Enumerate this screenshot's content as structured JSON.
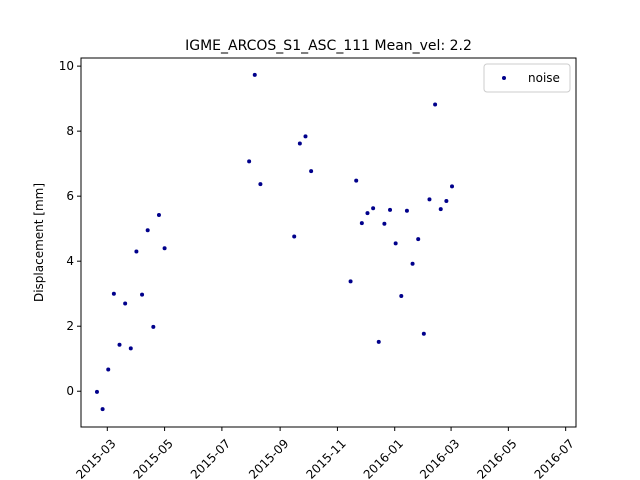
{
  "chart_data": {
    "type": "scatter",
    "title": "IGME_ARCOS_S1_ASC_111    Mean_vel: 2.2",
    "xlabel": "",
    "ylabel": "Displacement [mm]",
    "x_type": "date",
    "xlim": [
      "2015-02-01",
      "2016-07-12"
    ],
    "ylim": [
      -1.1,
      10.25
    ],
    "x_ticks": [
      "2015-03",
      "2015-05",
      "2015-07",
      "2015-09",
      "2015-11",
      "2016-01",
      "2016-03",
      "2016-05",
      "2016-07"
    ],
    "x_tick_dates": [
      "2015-03-01",
      "2015-05-01",
      "2015-07-01",
      "2015-09-01",
      "2015-11-01",
      "2016-01-01",
      "2016-03-01",
      "2016-05-01",
      "2016-07-01"
    ],
    "y_ticks": [
      0,
      2,
      4,
      6,
      8,
      10
    ],
    "grid": false,
    "legend_position": "top-right",
    "series": [
      {
        "name": "noise",
        "color": "#00008b",
        "points": [
          [
            "2015-02-18",
            -0.02
          ],
          [
            "2015-02-24",
            -0.55
          ],
          [
            "2015-03-02",
            0.67
          ],
          [
            "2015-03-08",
            3.0
          ],
          [
            "2015-03-14",
            1.43
          ],
          [
            "2015-03-20",
            2.7
          ],
          [
            "2015-03-26",
            1.32
          ],
          [
            "2015-04-01",
            4.3
          ],
          [
            "2015-04-07",
            2.97
          ],
          [
            "2015-04-13",
            4.95
          ],
          [
            "2015-04-19",
            1.98
          ],
          [
            "2015-04-25",
            5.42
          ],
          [
            "2015-05-01",
            4.4
          ],
          [
            "2015-07-30",
            7.07
          ],
          [
            "2015-08-05",
            9.73
          ],
          [
            "2015-08-11",
            6.37
          ],
          [
            "2015-09-16",
            4.76
          ],
          [
            "2015-09-22",
            7.62
          ],
          [
            "2015-09-28",
            7.84
          ],
          [
            "2015-10-04",
            6.77
          ],
          [
            "2015-11-15",
            3.38
          ],
          [
            "2015-11-21",
            6.48
          ],
          [
            "2015-11-27",
            5.17
          ],
          [
            "2015-12-03",
            5.48
          ],
          [
            "2015-12-09",
            5.63
          ],
          [
            "2015-12-15",
            1.52
          ],
          [
            "2015-12-21",
            5.15
          ],
          [
            "2015-12-27",
            5.58
          ],
          [
            "2016-01-02",
            4.55
          ],
          [
            "2016-01-08",
            2.93
          ],
          [
            "2016-01-14",
            5.55
          ],
          [
            "2016-01-20",
            3.92
          ],
          [
            "2016-01-26",
            4.68
          ],
          [
            "2016-02-01",
            1.77
          ],
          [
            "2016-02-07",
            5.9
          ],
          [
            "2016-02-13",
            8.82
          ],
          [
            "2016-02-19",
            5.6
          ],
          [
            "2016-02-25",
            5.85
          ],
          [
            "2016-03-02",
            6.3
          ]
        ]
      }
    ]
  }
}
